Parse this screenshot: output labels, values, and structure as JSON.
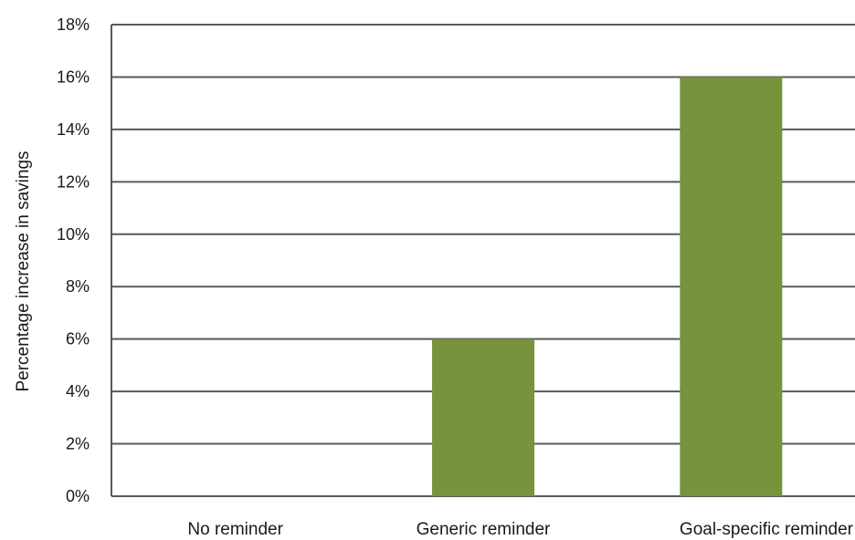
{
  "chart_data": {
    "type": "bar",
    "title": "",
    "xlabel": "",
    "ylabel": "Percentage increase in savings",
    "categories": [
      "No reminder",
      "Generic reminder",
      "Goal-specific reminder"
    ],
    "values": [
      0,
      6,
      16
    ],
    "ylim": [
      0,
      18
    ],
    "y_ticks": [
      0,
      2,
      4,
      6,
      8,
      10,
      12,
      14,
      16,
      18
    ],
    "y_tick_format": "percent",
    "grid": true,
    "legend": "none",
    "colors": {
      "bar": "#77933c",
      "grid": "#595959",
      "axis": "#595959",
      "text": "#1a1a1a"
    }
  }
}
